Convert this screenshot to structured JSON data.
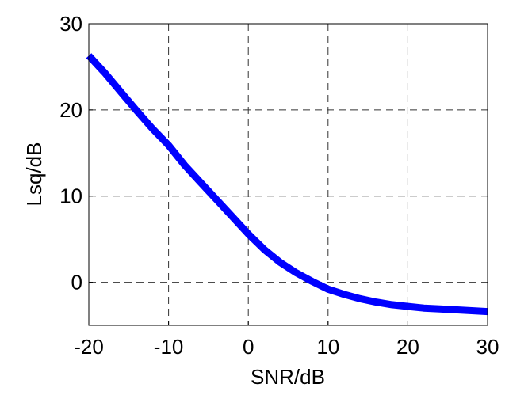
{
  "chart_data": {
    "type": "line",
    "title": "",
    "xlabel": "SNR/dB",
    "ylabel": "Lsq/dB",
    "xlim": [
      -20,
      30
    ],
    "ylim": [
      -5,
      30
    ],
    "xticks": [
      -20,
      -10,
      0,
      10,
      20,
      30
    ],
    "yticks": [
      0,
      10,
      20,
      30
    ],
    "xtick_labels": [
      "-20",
      "-10",
      "0",
      "10",
      "20",
      "30"
    ],
    "ytick_labels": [
      "0",
      "10",
      "20",
      "30"
    ],
    "grid": true,
    "legend": "none",
    "series": [
      {
        "color": "#0000ff",
        "x": [
          -20,
          -18,
          -16,
          -14,
          -12,
          -10,
          -8,
          -6,
          -4,
          -2,
          0,
          2,
          4,
          6,
          8,
          10,
          12,
          14,
          16,
          18,
          20,
          22,
          24,
          26,
          28,
          30
        ],
        "y": [
          26.3,
          24.3,
          22.1,
          19.9,
          17.8,
          15.9,
          13.6,
          11.6,
          9.6,
          7.6,
          5.6,
          3.8,
          2.3,
          1.1,
          0.1,
          -0.8,
          -1.4,
          -1.9,
          -2.3,
          -2.6,
          -2.8,
          -3.0,
          -3.1,
          -3.2,
          -3.3,
          -3.4
        ]
      }
    ]
  }
}
